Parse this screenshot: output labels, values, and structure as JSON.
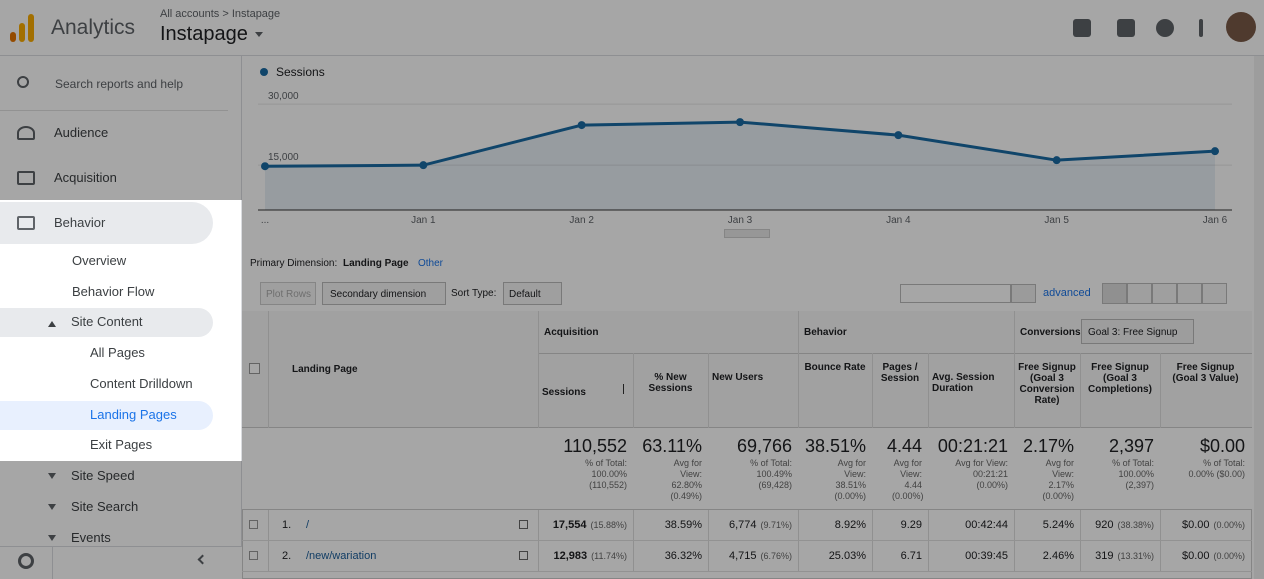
{
  "header": {
    "app": "Analytics",
    "breadcrumb": "All accounts > Instapage",
    "property": "Instapage"
  },
  "sidebar": {
    "search": "Search reports and help",
    "nav": [
      "Audience",
      "Acquisition",
      "Behavior",
      "Overview",
      "Behavior Flow",
      "Site Content",
      "All Pages",
      "Content Drilldown",
      "Landing Pages",
      "Exit Pages",
      "Site Speed",
      "Site Search",
      "Events"
    ]
  },
  "chart": {
    "type": "line",
    "series": [
      {
        "name": "Sessions",
        "color": "#1a6aa3",
        "values": [
          14750,
          15000,
          24840,
          25570,
          22380,
          16230,
          18440
        ]
      }
    ],
    "x": [
      "...",
      "Jan 1",
      "Jan 2",
      "Jan 3",
      "Jan 4",
      "Jan 5",
      "Jan 6"
    ],
    "ylim": [
      4000,
      31000
    ],
    "yticks": [
      {
        "value": 15000,
        "label": "15,000"
      },
      {
        "value": 30000,
        "label": "30,000"
      }
    ]
  },
  "table": {
    "primary_dimension_label": "Primary Dimension:",
    "primary_dimension": "Landing Page",
    "other": "Other",
    "plot_rows": "Plot Rows",
    "secondary_dimension": "Secondary dimension",
    "sort_type_label": "Sort Type:",
    "sort_type": "Default",
    "advanced": "advanced",
    "groups": [
      "Acquisition",
      "Behavior",
      "Conversions"
    ],
    "goal_select": "Goal 3: Free Signup",
    "columns": [
      "Landing Page",
      "Sessions",
      "% New Sessions",
      "New Users",
      "Bounce Rate",
      "Pages / Session",
      "Avg. Session Duration",
      "Free Signup (Goal 3 Conversion Rate)",
      "Free Signup (Goal 3 Completions)",
      "Free Signup (Goal 3 Value)"
    ],
    "totals": [
      {
        "value": "110,552",
        "note": "% of Total: 100.00% (110,552)"
      },
      {
        "value": "63.11%",
        "note": "Avg for View: 62.80% (0.49%)"
      },
      {
        "value": "69,766",
        "note": "% of Total: 100.49% (69,428)"
      },
      {
        "value": "38.51%",
        "note": "Avg for View: 38.51% (0.00%)"
      },
      {
        "value": "4.44",
        "note": "Avg for View: 4.44 (0.00%)"
      },
      {
        "value": "00:21:21",
        "note": "Avg for View: 00:21:21 (0.00%)"
      },
      {
        "value": "2.17%",
        "note": "Avg for View: 2.17% (0.00%)"
      },
      {
        "value": "2,397",
        "note": "% of Total: 100.00% (2,397)"
      },
      {
        "value": "$0.00",
        "note": "% of Total: 0.00% ($0.00)"
      }
    ],
    "rows": [
      {
        "index": "1.",
        "page": "/",
        "cells": [
          {
            "value": "17,554",
            "pct": "(15.88%)"
          },
          {
            "value": "38.59%"
          },
          {
            "value": "6,774",
            "pct": "(9.71%)"
          },
          {
            "value": "8.92%"
          },
          {
            "value": "9.29"
          },
          {
            "value": "00:42:44"
          },
          {
            "value": "5.24%"
          },
          {
            "value": "920",
            "pct": "(38.38%)"
          },
          {
            "value": "$0.00",
            "pct": "(0.00%)"
          }
        ]
      },
      {
        "index": "2.",
        "page": "/new/wariation",
        "cells": [
          {
            "value": "12,983",
            "pct": "(11.74%)"
          },
          {
            "value": "36.32%"
          },
          {
            "value": "4,715",
            "pct": "(6.76%)"
          },
          {
            "value": "25.03%"
          },
          {
            "value": "6.71"
          },
          {
            "value": "00:39:45"
          },
          {
            "value": "2.46%"
          },
          {
            "value": "319",
            "pct": "(13.31%)"
          },
          {
            "value": "$0.00",
            "pct": "(0.00%)"
          }
        ]
      }
    ]
  }
}
